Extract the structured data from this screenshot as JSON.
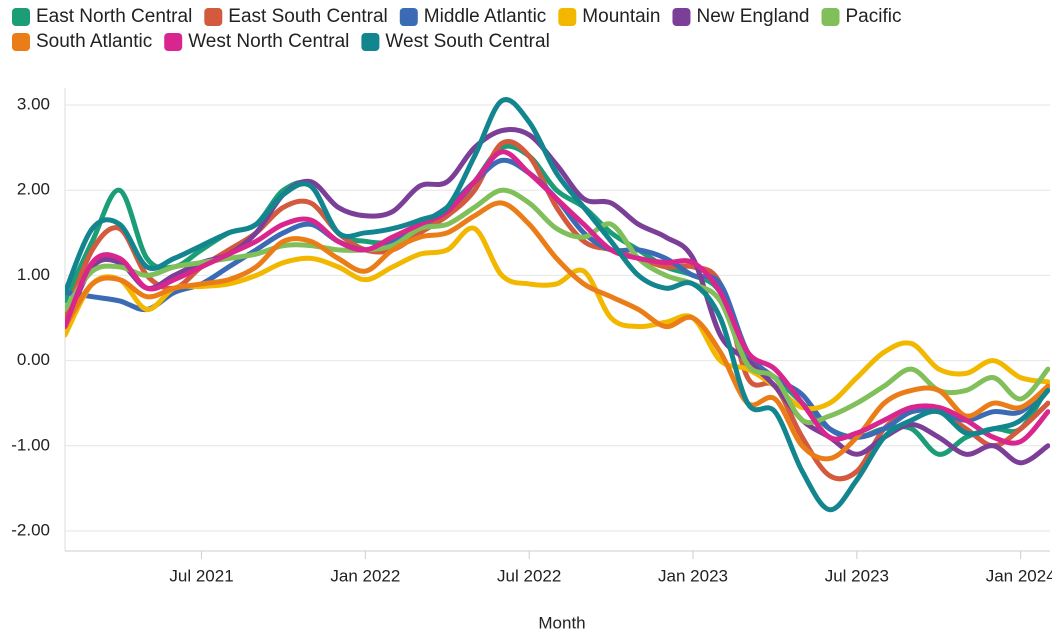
{
  "chart_data": {
    "type": "line",
    "x_label": "Month",
    "x": [
      "2021-02",
      "2021-03",
      "2021-04",
      "2021-05",
      "2021-06",
      "2021-07",
      "2021-08",
      "2021-09",
      "2021-10",
      "2021-11",
      "2021-12",
      "2022-01",
      "2022-02",
      "2022-03",
      "2022-04",
      "2022-05",
      "2022-06",
      "2022-07",
      "2022-08",
      "2022-09",
      "2022-10",
      "2022-11",
      "2022-12",
      "2023-01",
      "2023-02",
      "2023-03",
      "2023-04",
      "2023-05",
      "2023-06",
      "2023-07",
      "2023-08",
      "2023-09",
      "2023-10",
      "2023-11",
      "2023-12",
      "2024-01",
      "2024-02"
    ],
    "xlim": [
      "2021-02",
      "2024-02"
    ],
    "xticks": [
      {
        "value": "2021-07",
        "label": "Jul 2021"
      },
      {
        "value": "2022-01",
        "label": "Jan 2022"
      },
      {
        "value": "2022-07",
        "label": "Jul 2022"
      },
      {
        "value": "2023-01",
        "label": "Jan 2023"
      },
      {
        "value": "2023-07",
        "label": "Jul 2023"
      },
      {
        "value": "2024-01",
        "label": "Jan 2024"
      }
    ],
    "ylim": [
      -2.2,
      3.2
    ],
    "yticks": [
      {
        "value": -2,
        "label": "-2.00"
      },
      {
        "value": -1,
        "label": "-1.00"
      },
      {
        "value": 0,
        "label": "0.00"
      },
      {
        "value": 1,
        "label": "1.00"
      },
      {
        "value": 2,
        "label": "2.00"
      },
      {
        "value": 3,
        "label": "3.00"
      }
    ],
    "grid": true,
    "series": [
      {
        "name": "East North Central",
        "color": "#1b9e77",
        "values": [
          0.7,
          1.4,
          2.0,
          1.2,
          1.1,
          1.3,
          1.5,
          1.6,
          2.0,
          2.05,
          1.5,
          1.4,
          1.4,
          1.6,
          1.7,
          2.1,
          2.5,
          2.4,
          2.0,
          1.8,
          1.5,
          1.3,
          1.1,
          1.0,
          0.8,
          0.0,
          -0.2,
          -0.5,
          -0.8,
          -0.9,
          -0.8,
          -0.8,
          -1.1,
          -0.9,
          -0.8,
          -0.8,
          -0.3
        ]
      },
      {
        "name": "East South Central",
        "color": "#d35a3e",
        "values": [
          0.5,
          1.3,
          1.55,
          1.0,
          0.85,
          1.1,
          1.3,
          1.5,
          1.8,
          1.85,
          1.5,
          1.3,
          1.3,
          1.5,
          1.7,
          2.0,
          2.55,
          2.4,
          1.8,
          1.4,
          1.3,
          1.2,
          1.1,
          1.1,
          0.9,
          -0.2,
          -0.3,
          -0.9,
          -1.35,
          -1.3,
          -0.8,
          -0.6,
          -0.6,
          -0.8,
          -1.0,
          -0.8,
          -0.5
        ]
      },
      {
        "name": "Middle Atlantic",
        "color": "#3b6bb5",
        "values": [
          0.8,
          0.75,
          0.7,
          0.6,
          0.8,
          0.9,
          1.1,
          1.3,
          1.5,
          1.6,
          1.4,
          1.3,
          1.4,
          1.6,
          1.8,
          2.1,
          2.35,
          2.2,
          1.9,
          1.5,
          1.3,
          1.3,
          1.2,
          1.0,
          0.9,
          0.1,
          -0.2,
          -0.4,
          -0.8,
          -0.9,
          -0.8,
          -0.6,
          -0.6,
          -0.7,
          -0.6,
          -0.6,
          -0.3
        ]
      },
      {
        "name": "Mountain",
        "color": "#f2b800",
        "values": [
          0.3,
          0.9,
          0.95,
          0.6,
          0.85,
          0.87,
          0.9,
          1.0,
          1.15,
          1.2,
          1.1,
          0.95,
          1.1,
          1.25,
          1.3,
          1.55,
          1.0,
          0.9,
          0.9,
          1.05,
          0.5,
          0.4,
          0.45,
          0.5,
          0.0,
          -0.1,
          -0.3,
          -0.55,
          -0.5,
          -0.2,
          0.1,
          0.2,
          -0.1,
          -0.15,
          0.0,
          -0.2,
          -0.25
        ]
      },
      {
        "name": "New England",
        "color": "#7b3f98",
        "values": [
          0.4,
          1.1,
          1.15,
          0.85,
          1.0,
          1.15,
          1.25,
          1.5,
          1.95,
          2.1,
          1.8,
          1.7,
          1.75,
          2.05,
          2.1,
          2.5,
          2.7,
          2.65,
          2.3,
          1.9,
          1.85,
          1.6,
          1.45,
          1.2,
          0.3,
          0.0,
          -0.3,
          -0.7,
          -0.9,
          -1.1,
          -0.9,
          -0.75,
          -0.9,
          -1.1,
          -1.0,
          -1.2,
          -1.0
        ]
      },
      {
        "name": "Pacific",
        "color": "#80bf5a",
        "values": [
          0.6,
          1.05,
          1.1,
          1.0,
          1.1,
          1.15,
          1.2,
          1.25,
          1.35,
          1.35,
          1.3,
          1.3,
          1.35,
          1.55,
          1.6,
          1.8,
          2.0,
          1.85,
          1.55,
          1.45,
          1.6,
          1.2,
          1.0,
          0.9,
          0.7,
          -0.05,
          -0.2,
          -0.7,
          -0.65,
          -0.5,
          -0.3,
          -0.1,
          -0.35,
          -0.35,
          -0.2,
          -0.45,
          -0.1
        ]
      },
      {
        "name": "South Atlantic",
        "color": "#eb7d18",
        "values": [
          0.4,
          0.9,
          0.95,
          0.75,
          0.85,
          0.9,
          0.95,
          1.1,
          1.4,
          1.4,
          1.2,
          1.05,
          1.3,
          1.45,
          1.5,
          1.7,
          1.85,
          1.6,
          1.2,
          0.9,
          0.75,
          0.6,
          0.4,
          0.5,
          0.1,
          -0.5,
          -0.45,
          -1.0,
          -1.15,
          -0.9,
          -0.5,
          -0.35,
          -0.35,
          -0.65,
          -0.5,
          -0.55,
          -0.3
        ]
      },
      {
        "name": "West North Central",
        "color": "#d9268f",
        "values": [
          0.4,
          1.15,
          1.2,
          0.85,
          0.95,
          1.1,
          1.25,
          1.4,
          1.6,
          1.65,
          1.4,
          1.3,
          1.45,
          1.6,
          1.75,
          2.1,
          2.45,
          2.2,
          1.9,
          1.6,
          1.3,
          1.2,
          1.15,
          1.15,
          0.8,
          0.1,
          -0.1,
          -0.5,
          -0.9,
          -0.85,
          -0.7,
          -0.55,
          -0.55,
          -0.7,
          -0.9,
          -0.95,
          -0.6
        ]
      },
      {
        "name": "West South Central",
        "color": "#13858f",
        "values": [
          0.8,
          1.55,
          1.6,
          1.1,
          1.2,
          1.35,
          1.5,
          1.6,
          1.95,
          2.05,
          1.5,
          1.5,
          1.55,
          1.65,
          1.8,
          2.4,
          3.05,
          2.8,
          2.2,
          1.8,
          1.4,
          1.0,
          0.85,
          0.9,
          0.5,
          -0.5,
          -0.6,
          -1.3,
          -1.75,
          -1.4,
          -0.9,
          -0.7,
          -0.6,
          -0.85,
          -0.8,
          -0.7,
          -0.35
        ]
      }
    ]
  }
}
